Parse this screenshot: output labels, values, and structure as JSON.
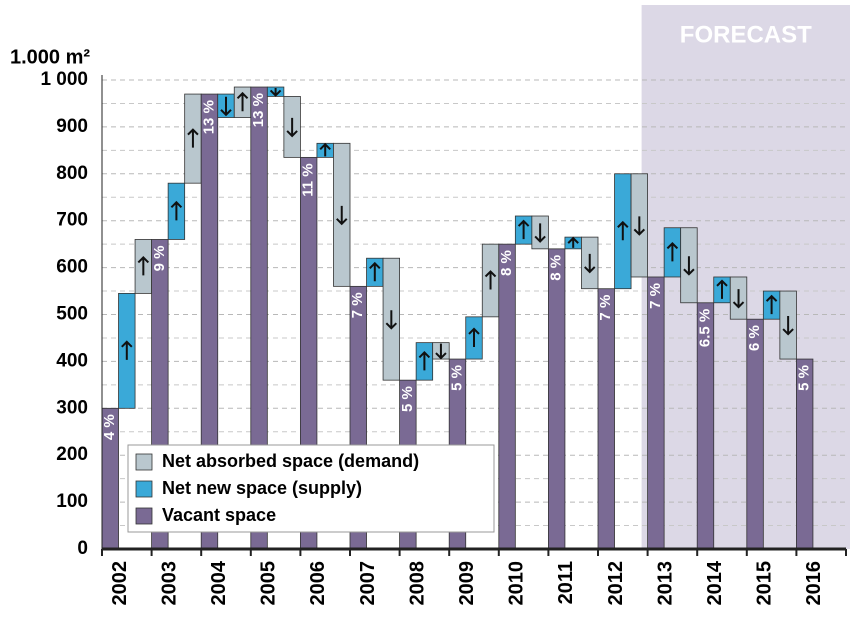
{
  "chart_data": {
    "type": "vacancy-waterfall",
    "axis_unit": "1.000 m²",
    "categories": [
      "2002",
      "2003",
      "2004",
      "2005",
      "2006",
      "2007",
      "2008",
      "2009",
      "2010",
      "2011",
      "2012",
      "2013",
      "2014",
      "2015",
      "2016"
    ],
    "series": [
      {
        "name": "Net absorbed space (demand)",
        "color": "#b9c7ce",
        "values": [
          -115,
          -190,
          -65,
          130,
          305,
          260,
          35,
          -155,
          70,
          110,
          220,
          160,
          90,
          145,
          null
        ]
      },
      {
        "name": "Net new space (supply)",
        "color": "#3aa9d8",
        "values": [
          245,
          120,
          -50,
          -20,
          30,
          60,
          80,
          90,
          60,
          25,
          245,
          105,
          55,
          60,
          null
        ]
      },
      {
        "name": "Vacant space",
        "color": "#7a6a94",
        "values": [
          300,
          660,
          970,
          985,
          835,
          560,
          360,
          405,
          650,
          640,
          555,
          580,
          525,
          490,
          405
        ]
      }
    ],
    "rate_labels": [
      "4 %",
      "9 %",
      "13 %",
      "13 %",
      "11 %",
      "7 %",
      "5 %",
      "5 %",
      "8 %",
      "8 %",
      "7 %",
      "7 %",
      "6.5 %",
      "6 %",
      "5 %"
    ],
    "forecast": {
      "label": "FORECAST",
      "start": "2013"
    },
    "ylim": [
      0,
      1000
    ],
    "yticks": [
      0,
      100,
      200,
      300,
      400,
      500,
      600,
      700,
      800,
      900,
      {
        "value": 1000,
        "label": "1 000"
      }
    ],
    "minor_grid": [
      50,
      150,
      250,
      350,
      450,
      550,
      650,
      750,
      850,
      950
    ],
    "grid": true
  }
}
